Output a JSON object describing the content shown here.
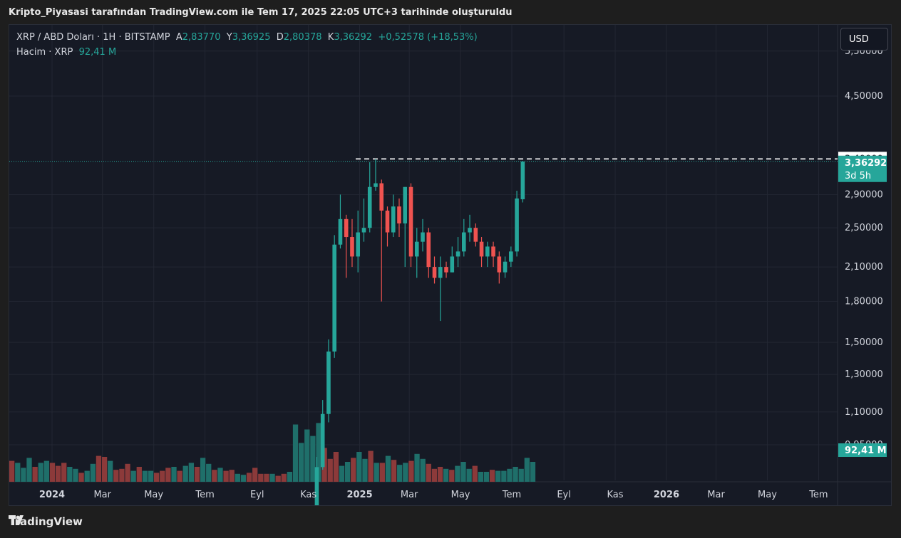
{
  "caption": "Kripto_Piyasasi tarafından TradingView.com ile Tem 17, 2025 22:05 UTC+3 tarihinde oluşturuldu",
  "legend": {
    "symbol": "XRP / ABD Doları · 1H · BITSTAMP",
    "open_label": "A",
    "open": "2,83770",
    "high_label": "Y",
    "high": "3,36925",
    "low_label": "D",
    "low": "2,80378",
    "close_label": "K",
    "close": "3,36292",
    "change": "+0,52578 (+18,53%)",
    "volume_label": "Hacim · XRP",
    "volume": "92,41 M"
  },
  "currency_button": "USD",
  "footer_brand": "TradingView",
  "colors": {
    "up": "#26a69a",
    "down": "#ef5350",
    "vol_up": "#1f6f6a",
    "vol_down": "#8c3a3a",
    "background": "#161a25",
    "grid": "#232733"
  },
  "chart_data": {
    "type": "candlestick",
    "y_scale": "log",
    "y_ticks": [
      {
        "value": 5.5,
        "label": "5,50000"
      },
      {
        "value": 4.5,
        "label": "4,50000"
      },
      {
        "value": 2.9,
        "label": "2,90000"
      },
      {
        "value": 2.5,
        "label": "2,50000"
      },
      {
        "value": 2.1,
        "label": "2,10000"
      },
      {
        "value": 1.8,
        "label": "1,80000"
      },
      {
        "value": 1.5,
        "label": "1,50000"
      },
      {
        "value": 1.3,
        "label": "1,30000"
      },
      {
        "value": 1.1,
        "label": "1,10000"
      },
      {
        "value": 0.95,
        "label": "0,95000"
      }
    ],
    "x_ticks": [
      {
        "date": "2024-01",
        "label": "2024",
        "bold": true
      },
      {
        "date": "2024-03",
        "label": "Mar"
      },
      {
        "date": "2024-05",
        "label": "May"
      },
      {
        "date": "2024-07",
        "label": "Tem"
      },
      {
        "date": "2024-09",
        "label": "Eyl"
      },
      {
        "date": "2024-11",
        "label": "Kas"
      },
      {
        "date": "2025-01",
        "label": "2025",
        "bold": true
      },
      {
        "date": "2025-03",
        "label": "Mar"
      },
      {
        "date": "2025-05",
        "label": "May"
      },
      {
        "date": "2025-07",
        "label": "Tem"
      },
      {
        "date": "2025-09",
        "label": "Eyl"
      },
      {
        "date": "2025-11",
        "label": "Kas"
      },
      {
        "date": "2026-01",
        "label": "2026",
        "bold": true
      },
      {
        "date": "2026-03",
        "label": "Mar"
      },
      {
        "date": "2026-05",
        "label": "May"
      },
      {
        "date": "2026-07",
        "label": "Tem"
      }
    ],
    "price_label": {
      "value": 3.36292,
      "label": "3,36292",
      "countdown": "3d 5h"
    },
    "level_label": {
      "value": 3.4,
      "label": "3,40000"
    },
    "volume_label": "92,41 M",
    "candles_note": "weekly candles from Nov 2024; open, high, low, close",
    "candles": [
      {
        "t": "2024-11-11",
        "o": 0.62,
        "h": 0.9,
        "l": 0.6,
        "c": 0.86
      },
      {
        "t": "2024-11-18",
        "o": 0.86,
        "h": 1.16,
        "l": 0.85,
        "c": 1.09
      },
      {
        "t": "2024-11-25",
        "o": 1.09,
        "h": 1.52,
        "l": 1.05,
        "c": 1.44
      },
      {
        "t": "2024-12-02",
        "o": 1.44,
        "h": 2.42,
        "l": 1.4,
        "c": 2.32
      },
      {
        "t": "2024-12-09",
        "o": 2.32,
        "h": 2.9,
        "l": 2.28,
        "c": 2.6
      },
      {
        "t": "2024-12-16",
        "o": 2.6,
        "h": 2.65,
        "l": 2.0,
        "c": 2.4
      },
      {
        "t": "2024-12-23",
        "o": 2.4,
        "h": 2.6,
        "l": 2.1,
        "c": 2.2
      },
      {
        "t": "2024-12-30",
        "o": 2.2,
        "h": 2.7,
        "l": 2.05,
        "c": 2.45
      },
      {
        "t": "2025-01-06",
        "o": 2.45,
        "h": 2.85,
        "l": 2.35,
        "c": 2.5
      },
      {
        "t": "2025-01-13",
        "o": 2.5,
        "h": 3.35,
        "l": 2.45,
        "c": 3.0
      },
      {
        "t": "2025-01-20",
        "o": 3.0,
        "h": 3.4,
        "l": 2.95,
        "c": 3.05
      },
      {
        "t": "2025-01-27",
        "o": 3.05,
        "h": 3.1,
        "l": 1.8,
        "c": 2.7
      },
      {
        "t": "2025-02-03",
        "o": 2.7,
        "h": 2.75,
        "l": 2.3,
        "c": 2.45
      },
      {
        "t": "2025-02-10",
        "o": 2.45,
        "h": 2.9,
        "l": 2.4,
        "c": 2.75
      },
      {
        "t": "2025-02-17",
        "o": 2.75,
        "h": 2.85,
        "l": 2.4,
        "c": 2.55
      },
      {
        "t": "2025-02-24",
        "o": 2.55,
        "h": 3.0,
        "l": 2.1,
        "c": 3.0
      },
      {
        "t": "2025-03-03",
        "o": 3.0,
        "h": 3.05,
        "l": 2.1,
        "c": 2.2
      },
      {
        "t": "2025-03-10",
        "o": 2.2,
        "h": 2.5,
        "l": 2.0,
        "c": 2.35
      },
      {
        "t": "2025-03-17",
        "o": 2.35,
        "h": 2.6,
        "l": 2.25,
        "c": 2.45
      },
      {
        "t": "2025-03-24",
        "o": 2.45,
        "h": 2.5,
        "l": 2.0,
        "c": 2.1
      },
      {
        "t": "2025-03-31",
        "o": 2.1,
        "h": 2.2,
        "l": 1.95,
        "c": 2.0
      },
      {
        "t": "2025-04-07",
        "o": 2.0,
        "h": 2.2,
        "l": 1.65,
        "c": 2.1
      },
      {
        "t": "2025-04-14",
        "o": 2.1,
        "h": 2.15,
        "l": 2.0,
        "c": 2.05
      },
      {
        "t": "2025-04-21",
        "o": 2.05,
        "h": 2.3,
        "l": 2.05,
        "c": 2.2
      },
      {
        "t": "2025-04-28",
        "o": 2.2,
        "h": 2.4,
        "l": 2.1,
        "c": 2.25
      },
      {
        "t": "2025-05-05",
        "o": 2.25,
        "h": 2.6,
        "l": 2.2,
        "c": 2.45
      },
      {
        "t": "2025-05-12",
        "o": 2.45,
        "h": 2.65,
        "l": 2.35,
        "c": 2.5
      },
      {
        "t": "2025-05-19",
        "o": 2.5,
        "h": 2.55,
        "l": 2.3,
        "c": 2.35
      },
      {
        "t": "2025-05-26",
        "o": 2.35,
        "h": 2.4,
        "l": 2.1,
        "c": 2.2
      },
      {
        "t": "2025-06-02",
        "o": 2.2,
        "h": 2.35,
        "l": 2.1,
        "c": 2.3
      },
      {
        "t": "2025-06-09",
        "o": 2.3,
        "h": 2.35,
        "l": 2.1,
        "c": 2.2
      },
      {
        "t": "2025-06-16",
        "o": 2.2,
        "h": 2.25,
        "l": 1.95,
        "c": 2.05
      },
      {
        "t": "2025-06-23",
        "o": 2.05,
        "h": 2.2,
        "l": 2.0,
        "c": 2.15
      },
      {
        "t": "2025-06-30",
        "o": 2.15,
        "h": 2.3,
        "l": 2.1,
        "c": 2.25
      },
      {
        "t": "2025-07-07",
        "o": 2.25,
        "h": 2.95,
        "l": 2.2,
        "c": 2.85
      },
      {
        "t": "2025-07-14",
        "o": 2.84,
        "h": 3.37,
        "l": 2.8,
        "c": 3.36
      }
    ],
    "volume_note": "weekly volume bars from Jan 2024, relative 0-1, up/down direction",
    "volume_bars": [
      0.42,
      0.38,
      0.28,
      0.48,
      0.3,
      0.38,
      0.42,
      0.38,
      0.32,
      0.38,
      0.3,
      0.26,
      0.18,
      0.22,
      0.36,
      0.52,
      0.5,
      0.42,
      0.24,
      0.26,
      0.36,
      0.22,
      0.3,
      0.22,
      0.22,
      0.18,
      0.22,
      0.28,
      0.3,
      0.22,
      0.32,
      0.38,
      0.3,
      0.48,
      0.36,
      0.24,
      0.28,
      0.22,
      0.24,
      0.16,
      0.14,
      0.18,
      0.28,
      0.16,
      0.16,
      0.16,
      0.12,
      0.16,
      0.2,
      1.15,
      0.78,
      1.05,
      0.92,
      1.18,
      0.68,
      0.46,
      0.6,
      0.32,
      0.4,
      0.48,
      0.6,
      0.46,
      0.62,
      0.38,
      0.38,
      0.52,
      0.44,
      0.34,
      0.38,
      0.42,
      0.56,
      0.46,
      0.36,
      0.26,
      0.3,
      0.26,
      0.24,
      0.32,
      0.4,
      0.26,
      0.32,
      0.2,
      0.2,
      0.24,
      0.22,
      0.22,
      0.26,
      0.3,
      0.26,
      0.48,
      0.4
    ],
    "volume_dirs": [
      "d",
      "u",
      "u",
      "u",
      "d",
      "u",
      "u",
      "d",
      "d",
      "d",
      "u",
      "u",
      "d",
      "u",
      "u",
      "d",
      "d",
      "u",
      "d",
      "d",
      "d",
      "u",
      "d",
      "u",
      "u",
      "d",
      "d",
      "d",
      "u",
      "d",
      "u",
      "u",
      "d",
      "u",
      "u",
      "d",
      "u",
      "d",
      "d",
      "u",
      "u",
      "d",
      "d",
      "d",
      "d",
      "u",
      "d",
      "d",
      "u",
      "u",
      "u",
      "u",
      "u",
      "u",
      "d",
      "d",
      "d",
      "u",
      "u",
      "d",
      "u",
      "u",
      "d",
      "u",
      "d",
      "u",
      "d",
      "u",
      "u",
      "d",
      "u",
      "u",
      "d",
      "d",
      "d",
      "u",
      "d",
      "u",
      "u",
      "u",
      "d",
      "u",
      "u",
      "d",
      "u",
      "u",
      "u",
      "u",
      "u",
      "u",
      "u"
    ]
  }
}
